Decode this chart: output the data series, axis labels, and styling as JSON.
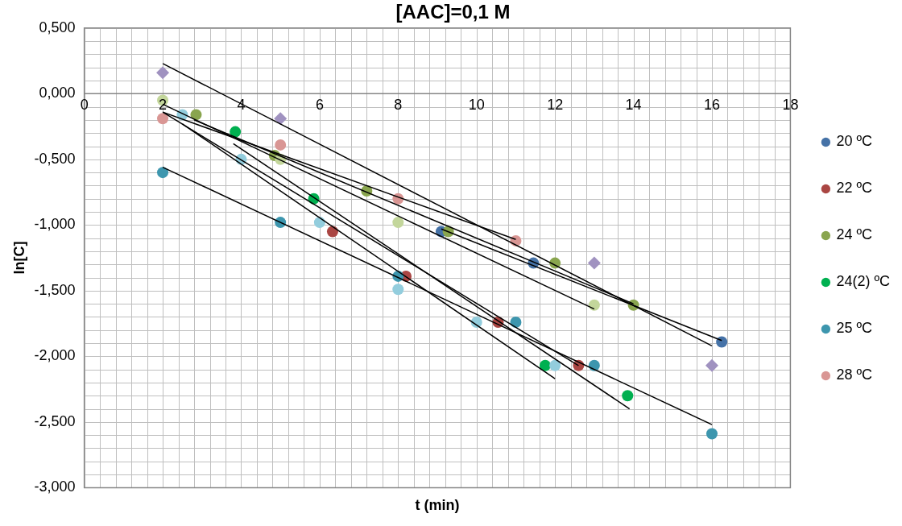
{
  "chart_data": {
    "type": "scatter",
    "title": "[AAC]=0,1 M",
    "xlabel": "t (min)",
    "ylabel": "ln[C]",
    "xlim": [
      0,
      18
    ],
    "xticks": [
      0,
      2,
      4,
      6,
      8,
      10,
      12,
      14,
      16,
      18
    ],
    "ylim": [
      -3,
      0.5
    ],
    "yticks": [
      {
        "value": -3,
        "label": "-3,000"
      },
      {
        "value": -2.5,
        "label": "-2,500"
      },
      {
        "value": -2,
        "label": "-2,000"
      },
      {
        "value": -1.5,
        "label": "-1,500"
      },
      {
        "value": -1,
        "label": "-1,000"
      },
      {
        "value": -0.5,
        "label": "-0,500"
      },
      {
        "value": 0,
        "label": "0,000"
      },
      {
        "value": 0.5,
        "label": "0,500"
      }
    ],
    "grid": true,
    "legend": "right",
    "marker": "circle",
    "series": [
      {
        "name": "20 ºC",
        "color": "#4572a7",
        "x": [
          9.1,
          11.45,
          16.25
        ],
        "values": [
          -1.05,
          -1.29,
          -1.89
        ]
      },
      {
        "name": "22 ºC",
        "color": "#aa4643",
        "x": [
          6.33,
          8.2,
          10.55,
          12.6
        ],
        "values": [
          -1.05,
          -1.39,
          -1.74,
          -2.07
        ]
      },
      {
        "name": "24 ºC",
        "color": "#89a54e",
        "x": [
          2.85,
          4.85,
          7.2,
          9.28,
          12,
          14
        ],
        "values": [
          -0.16,
          -0.47,
          -0.74,
          -1.05,
          -1.29,
          -1.61
        ]
      },
      {
        "name": "24(2) ºC",
        "color": "#00b050",
        "x": [
          3.85,
          5.85,
          11.75,
          13.85
        ],
        "values": [
          -0.29,
          -0.8,
          -2.07,
          -2.3
        ]
      },
      {
        "name": "25 ºC",
        "color": "#3d96ae",
        "x": [
          2,
          5,
          8,
          11,
          13,
          16
        ],
        "values": [
          -0.6,
          -0.98,
          -1.39,
          -1.74,
          -2.07,
          -2.59
        ]
      },
      {
        "name": "28 ºC",
        "color": "#d99694",
        "x": [
          2,
          5,
          8,
          11
        ],
        "values": [
          -0.19,
          -0.39,
          -0.8,
          -1.12
        ]
      },
      {
        "color": "#c3d69b",
        "x": [
          2,
          5,
          8,
          13
        ],
        "values": [
          -0.05,
          -0.5,
          -0.98,
          -1.61
        ]
      },
      {
        "color": "#93cddd",
        "x": [
          2.5,
          4,
          6,
          8,
          10,
          12
        ],
        "values": [
          -0.16,
          -0.5,
          -0.98,
          -1.49,
          -1.74,
          -2.07
        ]
      },
      {
        "color": "#a092c0",
        "marker": "diamond",
        "x": [
          2,
          5,
          13,
          16
        ],
        "values": [
          0.16,
          -0.19,
          -1.29,
          -2.07
        ]
      },
      {
        "type": "line",
        "marker": "none",
        "color": "#000000",
        "x": [
          2,
          16
        ],
        "values": [
          0.23,
          -1.92
        ]
      },
      {
        "type": "line",
        "marker": "none",
        "color": "#000000",
        "x": [
          2,
          11
        ],
        "values": [
          -0.14,
          -1.11
        ]
      },
      {
        "type": "line",
        "marker": "none",
        "color": "#000000",
        "x": [
          9.1,
          16.25
        ],
        "values": [
          -1.03,
          -1.88
        ]
      },
      {
        "type": "line",
        "marker": "none",
        "color": "#000000",
        "x": [
          2.8,
          14
        ],
        "values": [
          -0.2,
          -1.6
        ]
      },
      {
        "type": "line",
        "marker": "none",
        "color": "#000000",
        "x": [
          2,
          13
        ],
        "values": [
          -0.08,
          -1.64
        ]
      },
      {
        "type": "line",
        "marker": "none",
        "color": "#000000",
        "x": [
          2.5,
          12
        ],
        "values": [
          -0.23,
          -2.17
        ]
      },
      {
        "type": "line",
        "marker": "none",
        "color": "#000000",
        "x": [
          3.8,
          13.9
        ],
        "values": [
          -0.38,
          -2.4
        ]
      },
      {
        "type": "line",
        "marker": "none",
        "color": "#000000",
        "x": [
          2,
          12.6
        ],
        "values": [
          -0.14,
          -2.07
        ]
      },
      {
        "type": "line",
        "marker": "none",
        "color": "#000000",
        "x": [
          2,
          16
        ],
        "values": [
          -0.56,
          -2.52
        ]
      }
    ]
  }
}
